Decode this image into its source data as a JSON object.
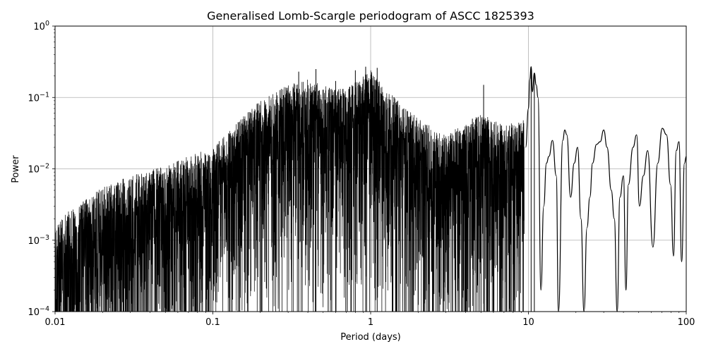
{
  "chart_data": {
    "type": "line",
    "title": "Generalised Lomb-Scargle periodogram of ASCC 1825393",
    "xlabel": "Period (days)",
    "ylabel": "Power",
    "xscale": "log",
    "yscale": "log",
    "xlim": [
      0.01,
      100
    ],
    "ylim": [
      0.0001,
      1
    ],
    "grid": true,
    "line_color": "#000000",
    "xticks": [
      {
        "value": 0.01,
        "label": "0.01"
      },
      {
        "value": 0.1,
        "label": "0.1"
      },
      {
        "value": 1,
        "label": "1"
      },
      {
        "value": 10,
        "label": "10"
      },
      {
        "value": 100,
        "label": "100"
      }
    ],
    "yticks": [
      {
        "value": 0.0001,
        "base": "10",
        "exp": "−4"
      },
      {
        "value": 0.001,
        "base": "10",
        "exp": "−3"
      },
      {
        "value": 0.01,
        "base": "10",
        "exp": "−2"
      },
      {
        "value": 0.1,
        "base": "10",
        "exp": "−1"
      },
      {
        "value": 1,
        "base": "10",
        "exp": "0"
      }
    ],
    "series": [
      {
        "envelope": [
          [
            0.01,
            0.0015
          ],
          [
            0.012,
            0.0025
          ],
          [
            0.015,
            0.0035
          ],
          [
            0.02,
            0.0055
          ],
          [
            0.03,
            0.008
          ],
          [
            0.05,
            0.011
          ],
          [
            0.07,
            0.015
          ],
          [
            0.1,
            0.02
          ],
          [
            0.15,
            0.05
          ],
          [
            0.2,
            0.09
          ],
          [
            0.3,
            0.15
          ],
          [
            0.4,
            0.18
          ],
          [
            0.5,
            0.15
          ],
          [
            0.7,
            0.13
          ],
          [
            0.9,
            0.2
          ],
          [
            1.0,
            0.25
          ],
          [
            1.3,
            0.12
          ],
          [
            1.6,
            0.08
          ],
          [
            2.0,
            0.05
          ],
          [
            3.0,
            0.03
          ],
          [
            5.0,
            0.06
          ],
          [
            7.0,
            0.04
          ],
          [
            9.0,
            0.05
          ]
        ],
        "peaks": [
          [
            0.35,
            0.23
          ],
          [
            0.45,
            0.25
          ],
          [
            0.6,
            0.17
          ],
          [
            0.8,
            0.24
          ],
          [
            0.93,
            0.27
          ],
          [
            1.1,
            0.26
          ],
          [
            5.2,
            0.15
          ],
          [
            10.4,
            0.27
          ],
          [
            10.9,
            0.22
          ]
        ],
        "smooth_points": [
          [
            9.6,
            0.02
          ],
          [
            10.0,
            0.07
          ],
          [
            10.2,
            0.18
          ],
          [
            10.4,
            0.27
          ],
          [
            10.6,
            0.12
          ],
          [
            10.9,
            0.22
          ],
          [
            11.2,
            0.15
          ],
          [
            11.5,
            0.1
          ],
          [
            12.0,
            0.0002
          ],
          [
            12.5,
            0.003
          ],
          [
            13.0,
            0.012
          ],
          [
            13.5,
            0.015
          ],
          [
            14.2,
            0.025
          ],
          [
            15.0,
            0.008
          ],
          [
            15.5,
            0.0001
          ],
          [
            16.5,
            0.025
          ],
          [
            17.0,
            0.035
          ],
          [
            17.5,
            0.03
          ],
          [
            18.5,
            0.004
          ],
          [
            19.5,
            0.012
          ],
          [
            20.5,
            0.02
          ],
          [
            21.5,
            0.002
          ],
          [
            22.5,
            0.0001
          ],
          [
            23.5,
            0.0015
          ],
          [
            24.5,
            0.004
          ],
          [
            25.5,
            0.012
          ],
          [
            27.0,
            0.022
          ],
          [
            28.5,
            0.024
          ],
          [
            30.0,
            0.035
          ],
          [
            31.5,
            0.02
          ],
          [
            33.5,
            0.005
          ],
          [
            35.0,
            0.002
          ],
          [
            36.5,
            0.0001
          ],
          [
            38.0,
            0.004
          ],
          [
            40.0,
            0.008
          ],
          [
            41.5,
            0.0002
          ],
          [
            43.0,
            0.006
          ],
          [
            46.0,
            0.02
          ],
          [
            48.5,
            0.03
          ],
          [
            50.5,
            0.003
          ],
          [
            53.5,
            0.008
          ],
          [
            57.0,
            0.018
          ],
          [
            61.5,
            0.0008
          ],
          [
            66.0,
            0.012
          ],
          [
            70.5,
            0.037
          ],
          [
            75.0,
            0.03
          ],
          [
            79.5,
            0.006
          ],
          [
            83.0,
            0.0006
          ],
          [
            86.5,
            0.018
          ],
          [
            90.0,
            0.024
          ],
          [
            93.5,
            0.0005
          ],
          [
            97.5,
            0.012
          ],
          [
            100.0,
            0.015
          ]
        ]
      }
    ]
  }
}
